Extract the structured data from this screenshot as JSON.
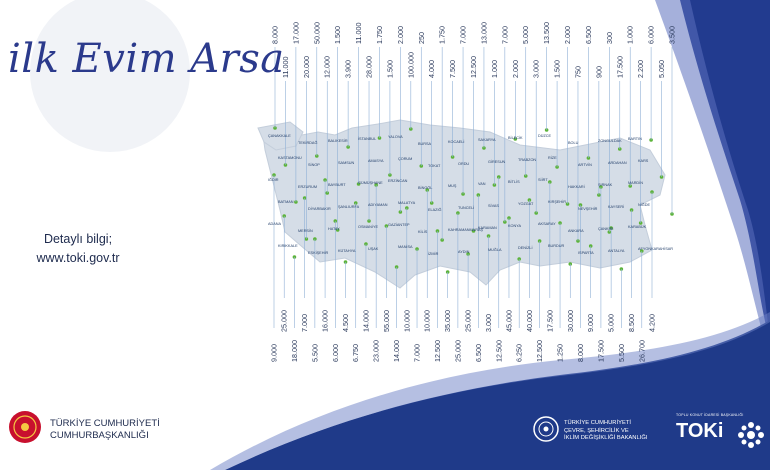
{
  "title": "ilk Evim Arsa",
  "info": {
    "line1": "Detaylı bilgi;",
    "line2": "www.toki.gov.tr"
  },
  "brand_left": {
    "line1": "TÜRKİYE CUMHURİYETİ",
    "line2": "CUMHURBAŞKANLIĞI"
  },
  "brand_mid": {
    "line1": "TÜRKİYE CUMHURİYETİ",
    "line2": "ÇEVRE, ŞEHİRCİLİK VE",
    "line3": "İKLİM DEĞİŞİKLİĞİ BAKANLIĞI"
  },
  "brand_right": {
    "logo_text": "TOKi",
    "subtitle": "TOPLU KONUT İDARESİ BAŞKANLIĞI"
  },
  "top_values": [
    "8.000",
    "11.000",
    "17.000",
    "20.000",
    "50.000",
    "12.000",
    "1.500",
    "3.900",
    "11.000",
    "28.000",
    "1.750",
    "1.500",
    "2.000",
    "100.000",
    "250",
    "4.000",
    "1.750",
    "7.500",
    "7.000",
    "12.500",
    "13.000",
    "1.000",
    "7.000",
    "2.000",
    "5.000",
    "3.000",
    "13.500",
    "1.500",
    "2.000",
    "750",
    "6.500",
    "900",
    "300",
    "17.500",
    "1.000",
    "2.200",
    "6.000",
    "5.050",
    "3.500"
  ],
  "bottom_values": [
    "9.000",
    "25.000",
    "18.000",
    "7.000",
    "5.500",
    "16.000",
    "6.000",
    "4.500",
    "6.750",
    "14.000",
    "23.000",
    "55.000",
    "14.000",
    "10.000",
    "7.000",
    "10.000",
    "12.500",
    "35.000",
    "25.000",
    "25.000",
    "6.500",
    "3.000",
    "12.500",
    "45.000",
    "6.250",
    "40.000",
    "12.500",
    "17.500",
    "1.250",
    "30.000",
    "8.000",
    "9.000",
    "17.500",
    "5.000",
    "5.500",
    "8.500",
    "26.700",
    "4.200"
  ],
  "city_labels": [
    "ÇANAKKALE",
    "TEKİRDAĞ",
    "BALIKESİR",
    "İSTANBUL",
    "YALOVA",
    "BURSA",
    "KOCAELİ",
    "SAKARYA",
    "BİLECİK",
    "DÜZCE",
    "BOLU",
    "ZONGULDAK",
    "BARTIN",
    "KASTAMONU",
    "SİNOP",
    "SAMSUN",
    "AMASYA",
    "ÇORUM",
    "TOKAT",
    "ORDU",
    "GİRESUN",
    "TRABZON",
    "RİZE",
    "ARTVİN",
    "ARDAHAN",
    "KARS",
    "IĞDIR",
    "ERZURUM",
    "BAYBURT",
    "GÜMÜŞHANE",
    "ERZİNCAN",
    "BİNGÖL",
    "MUŞ",
    "VAN",
    "BİTLİS",
    "SİİRT",
    "HAKKARİ",
    "ŞIRNAK",
    "MARDİN",
    "BATMAN",
    "DİYARBAKIR",
    "ŞANLIURFA",
    "ADIYAMAN",
    "MALATYA",
    "ELAZIĞ",
    "TUNCELİ",
    "SİVAS",
    "YOZGAT",
    "KIRŞEHİR",
    "NEVŞEHİR",
    "KAYSERİ",
    "NİĞDE",
    "ADANA",
    "MERSİN",
    "HATAY",
    "OSMANİYE",
    "GAZİANTEP",
    "KİLİS",
    "KAHRAMANMARAŞ",
    "KARAMAN",
    "KONYA",
    "AKSARAY",
    "ANKARA",
    "ÇANKIRI",
    "KARABÜK",
    "KIRIKKALE",
    "ESKİŞEHİR",
    "KÜTAHYA",
    "UŞAK",
    "MANİSA",
    "İZMİR",
    "AYDIN",
    "MUĞLA",
    "DENİZLİ",
    "BURDUR",
    "ISPARTA",
    "ANTALYA",
    "AFYONKARAHİSAR"
  ]
}
